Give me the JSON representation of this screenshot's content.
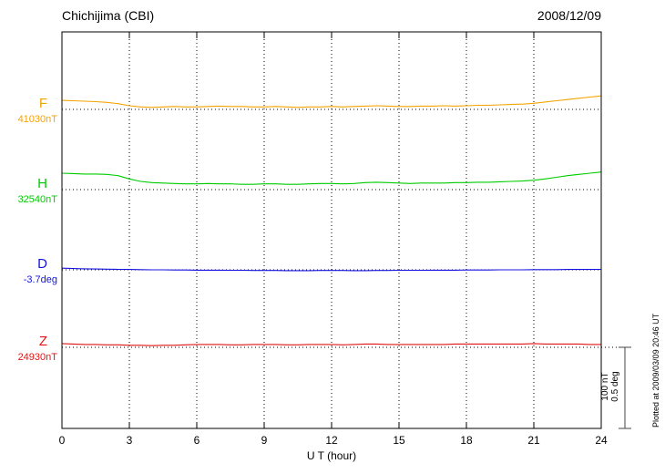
{
  "header": {
    "station": "Chichijima (CBI)",
    "date": "2008/12/09"
  },
  "footer": {
    "plotted_at": "Plotted at 2009/03/09 20:46 UT"
  },
  "chart_data": {
    "type": "line",
    "title": "Chichijima (CBI)",
    "date": "2008/12/09",
    "xlabel": "U T (hour)",
    "xlim": [
      0,
      24
    ],
    "x_ticks": [
      0,
      3,
      6,
      9,
      12,
      15,
      18,
      21,
      24
    ],
    "grid": "vertical-dotted",
    "legend": "left-margin-component-labels",
    "scale_bar": {
      "nt_label": "100 nT",
      "deg_label": "0.5 deg"
    },
    "series": [
      {
        "name": "F",
        "unit": "nT",
        "base": 41030,
        "base_label": "41030nT",
        "color": "#f5a300",
        "x_start": 0,
        "x_step": 0.5,
        "offsets": [
          11,
          10.5,
          10,
          9.5,
          8.5,
          7,
          4.5,
          3,
          2.5,
          3,
          3.5,
          3,
          3,
          3.5,
          4,
          3.5,
          3.5,
          3,
          3,
          3.5,
          3,
          2.5,
          3,
          3,
          3.5,
          3,
          3.5,
          4,
          4.5,
          4,
          3.5,
          3.5,
          4,
          4,
          4.5,
          4,
          4.5,
          5,
          5,
          5.5,
          6,
          6.5,
          7.5,
          9,
          10.5,
          12,
          13.5,
          15,
          16.5
        ]
      },
      {
        "name": "H",
        "unit": "nT",
        "base": 32540,
        "base_label": "32540nT",
        "color": "#00cc00",
        "x_start": 0,
        "x_step": 0.5,
        "offsets": [
          20,
          19.5,
          19,
          19,
          18.5,
          17,
          13,
          10,
          8.5,
          8,
          7.5,
          7,
          7,
          7.5,
          7,
          7,
          6.5,
          6.5,
          7,
          7,
          6.5,
          6.5,
          7,
          7.5,
          7.5,
          7,
          7.5,
          8.5,
          9,
          8.5,
          8,
          7.5,
          8,
          8,
          8,
          8.5,
          8.5,
          9,
          9,
          9.5,
          10,
          10.5,
          11.5,
          13,
          15,
          17,
          18.5,
          20,
          21.5
        ]
      },
      {
        "name": "D",
        "unit": "deg",
        "base": -3.7,
        "base_label": "-3.7deg",
        "color": "#1414e0",
        "x_start": 0,
        "x_step": 0.5,
        "offsets": [
          0.01,
          0.008,
          0.006,
          0.005,
          0.004,
          0.003,
          0.002,
          0.001,
          0,
          0,
          -0.001,
          -0.001,
          -0.002,
          -0.002,
          -0.002,
          -0.003,
          -0.003,
          -0.004,
          -0.004,
          -0.004,
          -0.005,
          -0.005,
          -0.005,
          -0.004,
          -0.004,
          -0.004,
          -0.005,
          -0.005,
          -0.004,
          -0.004,
          -0.003,
          -0.003,
          -0.003,
          -0.002,
          -0.002,
          -0.002,
          -0.001,
          -0.001,
          -0.001,
          0,
          0,
          0,
          0.001,
          0.001,
          0.001,
          0.002,
          0.002,
          0.002,
          0.003
        ]
      },
      {
        "name": "Z",
        "unit": "nT",
        "base": 24930,
        "base_label": "24930nT",
        "color": "#e01414",
        "x_start": 0,
        "x_step": 0.5,
        "offsets": [
          4.5,
          4,
          3.5,
          3.5,
          3,
          3,
          2.5,
          2.5,
          2,
          2.5,
          2.5,
          3,
          3.5,
          3.5,
          3.5,
          3,
          3,
          3.5,
          3.5,
          3.5,
          3,
          3,
          3.5,
          3.5,
          3.5,
          3,
          3.5,
          4,
          4,
          3.5,
          3.5,
          3.5,
          3.5,
          3.5,
          3.5,
          4,
          4,
          4,
          4,
          4,
          4,
          4,
          4.5,
          4,
          4,
          4,
          4,
          3.5,
          3.5
        ]
      }
    ]
  }
}
